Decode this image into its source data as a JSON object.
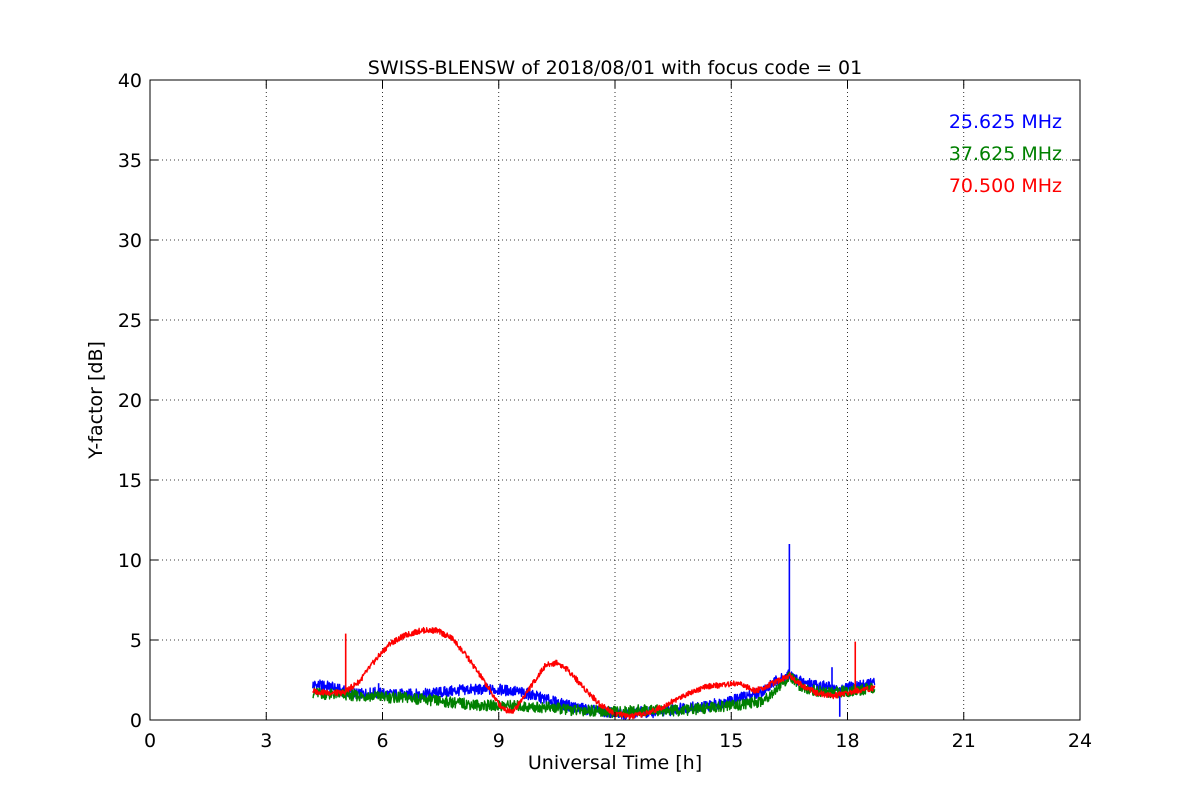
{
  "chart_data": {
    "type": "line",
    "title": "SWISS-BLENSW of 2018/08/01 with focus code = 01",
    "xlabel": "Universal Time [h]",
    "ylabel": "Y-factor [dB]",
    "xlim": [
      0,
      24
    ],
    "ylim": [
      0,
      40
    ],
    "xticks": [
      0,
      3,
      6,
      9,
      12,
      15,
      18,
      21,
      24
    ],
    "yticks": [
      0,
      5,
      10,
      15,
      20,
      25,
      30,
      35,
      40
    ],
    "grid": true,
    "legend_placement": "top-right",
    "series": [
      {
        "name": "25.625 MHz",
        "color": "#0000ff",
        "x": [
          4.2,
          4.6,
          5.0,
          5.4,
          5.8,
          6.2,
          6.6,
          7.0,
          7.4,
          7.8,
          8.2,
          8.6,
          9.0,
          9.4,
          9.8,
          10.2,
          10.6,
          11.0,
          11.4,
          11.8,
          12.2,
          12.6,
          13.0,
          13.4,
          13.8,
          14.2,
          14.6,
          15.0,
          15.4,
          15.8,
          16.2,
          16.5,
          16.8,
          17.2,
          17.6,
          17.8,
          18.0,
          18.4,
          18.7
        ],
        "y": [
          2.2,
          2.1,
          1.8,
          1.6,
          1.7,
          1.6,
          1.6,
          1.6,
          1.7,
          1.8,
          1.9,
          1.9,
          1.9,
          1.8,
          1.6,
          1.3,
          1.0,
          0.8,
          0.6,
          0.5,
          0.4,
          0.5,
          0.5,
          0.6,
          0.8,
          0.8,
          1.0,
          1.2,
          1.5,
          1.8,
          2.5,
          2.8,
          2.4,
          2.2,
          2.0,
          1.8,
          2.0,
          2.2,
          2.3
        ],
        "spikes": [
          {
            "x": 5.9,
            "y": 2.3
          },
          {
            "x": 16.5,
            "y": 11.0
          },
          {
            "x": 17.6,
            "y": 3.3
          },
          {
            "x": 17.8,
            "y": 0.2
          }
        ]
      },
      {
        "name": "37.625 MHz",
        "color": "#008000",
        "x": [
          4.2,
          4.6,
          5.0,
          5.4,
          5.8,
          6.2,
          6.6,
          7.0,
          7.4,
          7.8,
          8.2,
          8.6,
          9.0,
          9.4,
          9.8,
          10.2,
          10.6,
          11.0,
          11.4,
          11.8,
          12.2,
          12.6,
          13.0,
          13.4,
          13.8,
          14.2,
          14.6,
          15.0,
          15.4,
          15.8,
          16.2,
          16.5,
          16.8,
          17.2,
          17.6,
          18.0,
          18.4,
          18.7
        ],
        "y": [
          1.7,
          1.6,
          1.6,
          1.5,
          1.5,
          1.4,
          1.4,
          1.3,
          1.2,
          1.1,
          1.0,
          0.9,
          0.9,
          0.9,
          0.8,
          0.8,
          0.7,
          0.6,
          0.6,
          0.5,
          0.5,
          0.6,
          0.6,
          0.6,
          0.6,
          0.7,
          0.8,
          0.9,
          1.0,
          1.2,
          2.0,
          2.7,
          2.1,
          1.8,
          1.7,
          1.8,
          1.9,
          2.0
        ]
      },
      {
        "name": "70.500 MHz",
        "color": "#ff0000",
        "x": [
          4.2,
          4.6,
          5.0,
          5.4,
          5.8,
          6.2,
          6.6,
          7.0,
          7.4,
          7.8,
          8.2,
          8.6,
          9.0,
          9.2,
          9.4,
          9.8,
          10.2,
          10.5,
          10.8,
          11.2,
          11.6,
          12.0,
          12.4,
          12.8,
          13.2,
          13.6,
          14.0,
          14.4,
          14.8,
          15.2,
          15.6,
          16.0,
          16.5,
          16.8,
          17.2,
          17.6,
          18.0,
          18.4,
          18.7
        ],
        "y": [
          1.8,
          1.7,
          1.7,
          2.4,
          3.7,
          4.8,
          5.3,
          5.6,
          5.6,
          5.1,
          3.9,
          2.5,
          1.0,
          0.6,
          0.6,
          2.0,
          3.4,
          3.6,
          3.1,
          2.0,
          1.0,
          0.4,
          0.2,
          0.4,
          0.8,
          1.3,
          1.8,
          2.1,
          2.2,
          2.3,
          1.8,
          2.2,
          2.8,
          2.2,
          1.7,
          1.5,
          1.7,
          1.9,
          2.0
        ],
        "spikes": [
          {
            "x": 5.05,
            "y": 5.4
          },
          {
            "x": 18.2,
            "y": 4.9
          }
        ]
      }
    ]
  }
}
